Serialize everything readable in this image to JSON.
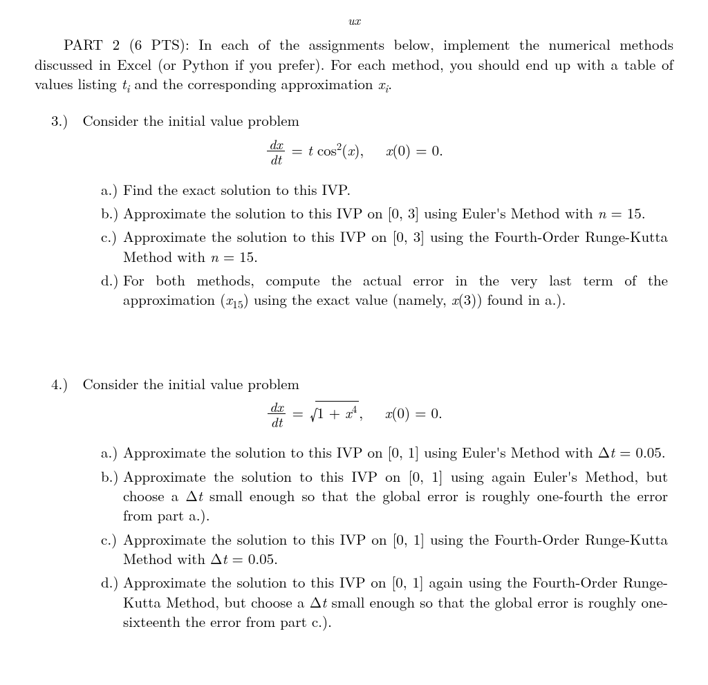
{
  "header_glyph": "ux",
  "intro": {
    "part_label": "PART 2 (6 PTS):",
    "text_1": " In each of the assignments below, implement the numerical methods discussed in Excel (or Python if you prefer). For each method, you should end up with a table of values listing ",
    "var_t": "t",
    "sub_i_1": "i",
    "text_2": " and the corresponding approximation ",
    "var_x": "x",
    "sub_i_2": "i",
    "period": "."
  },
  "p3": {
    "label": "3.)  ",
    "head": "Consider the initial value problem",
    "eq": {
      "frac_num": "dx",
      "frac_den": "dt",
      "eq_sign": " = ",
      "rhs_1": "t",
      "rhs_2": " cos",
      "rhs_sup": "2",
      "rhs_3": "(",
      "rhs_var": "x",
      "rhs_4": "),   ",
      "ic_var": "x",
      "ic_rest": "(0) = 0."
    },
    "a": {
      "lbl": "a.)",
      "txt": "Find the exact solution to this IVP."
    },
    "b": {
      "lbl": "b.)",
      "t1": "Approximate the solution to this IVP on [0, 3] using Euler's Method with ",
      "nvar": "n",
      "t2": " = 15."
    },
    "c": {
      "lbl": "c.)",
      "t1": "Approximate the solution to this IVP on [0, 3] using the Fourth-Order Runge-Kutta Method with ",
      "nvar": "n",
      "t2": " = 15."
    },
    "d": {
      "lbl": "d.)",
      "t1": "For both methods, compute the actual error in the very last term of the approximation (",
      "xvar": "x",
      "sub15": "15",
      "t2": ") using the exact value (namely, ",
      "xvar2": "x",
      "t3": "(3)) found in a.)."
    }
  },
  "p4": {
    "label": "4.)  ",
    "head": "Consider the initial value problem",
    "eq": {
      "frac_num": "dx",
      "frac_den": "dt",
      "eq_sign": " = ",
      "rad_1": "1 + ",
      "rad_var": "x",
      "rad_sup": "4",
      "comma": ",   ",
      "ic_var": "x",
      "ic_rest": "(0) = 0."
    },
    "a": {
      "lbl": "a.)",
      "t1": "Approximate the solution to this IVP on [0, 1] using Euler's Method with Δ",
      "tvar": "t",
      "t2": " = 0.05."
    },
    "b": {
      "lbl": "b.)",
      "t1": "Approximate the solution to this IVP on [0, 1] using again Euler's Method, but choose a Δ",
      "tvar": "t",
      "t2": " small enough so that the global error is roughly one-fourth the error from part a.)."
    },
    "c": {
      "lbl": "c.)",
      "t1": "Approximate the solution to this IVP on [0, 1] using the Fourth-Order Runge-Kutta Method with Δ",
      "tvar": "t",
      "t2": " = 0.05."
    },
    "d": {
      "lbl": "d.)",
      "t1": "Approximate the solution to this IVP on [0, 1] again using the Fourth-Order Runge-Kutta Method, but choose a Δ",
      "tvar": "t",
      "t2": " small enough so that the global error is roughly one-sixteenth the error from part c.)."
    }
  }
}
